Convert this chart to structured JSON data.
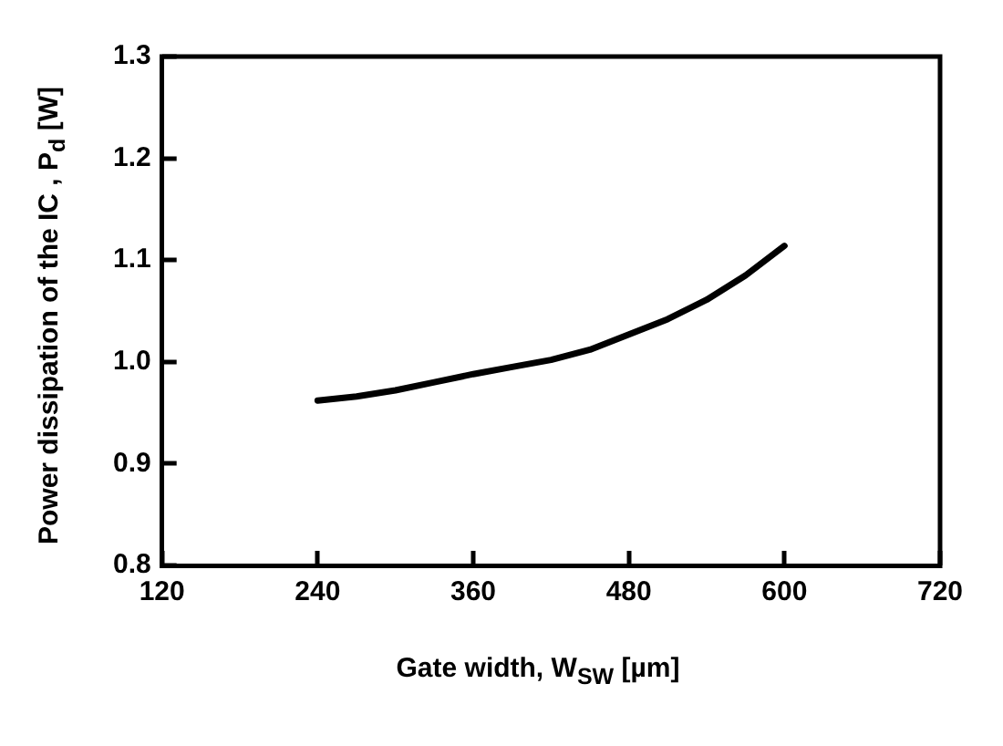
{
  "chart_data": {
    "type": "line",
    "xlabel": "Gate width, W$_{SW}$   [µm]",
    "ylabel": "Power dissipation of the IC , P$_{d}$ [W]",
    "x": [
      240,
      270,
      300,
      330,
      360,
      390,
      420,
      450,
      480,
      510,
      540,
      570,
      600
    ],
    "series": [
      {
        "color": "#000000",
        "values": [
          0.962,
          0.966,
          0.972,
          0.98,
          0.988,
          0.995,
          1.002,
          1.012,
          1.027,
          1.042,
          1.061,
          1.085,
          1.114
        ]
      }
    ],
    "xlim": [
      120,
      720
    ],
    "xticks": [
      120,
      240,
      360,
      480,
      600,
      720
    ],
    "ylim": [
      0.8,
      1.3
    ],
    "yticks": [
      {
        "value": 0.8,
        "label": "0.8"
      },
      {
        "value": 0.9,
        "label": "0.9"
      },
      {
        "value": 1.0,
        "label": "1.0"
      },
      {
        "value": 1.1,
        "label": "1.1"
      },
      {
        "value": 1.2,
        "label": "1.2"
      },
      {
        "value": 1.3,
        "label": "1.3"
      }
    ],
    "grid": false,
    "legend": false,
    "marker": "none",
    "line_style": "solid"
  }
}
